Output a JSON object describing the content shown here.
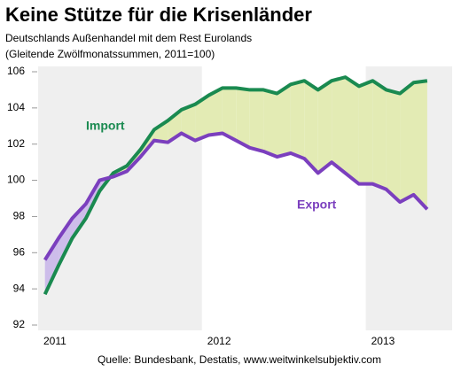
{
  "chart_data": {
    "type": "line",
    "title": "Keine Stütze für die Krisenländer",
    "subtitle": [
      "Deutschlands Außenhandel mit dem Rest Eurolands",
      "(Gleitende Zwölfmonatssummen, 2011=100)"
    ],
    "source": "Quelle: Bundesbank, Destatis, www.weitwinkelsubjektiv.com",
    "categories": [
      "2011",
      null,
      null,
      null,
      null,
      null,
      null,
      null,
      null,
      null,
      null,
      null,
      "2012",
      null,
      null,
      null,
      null,
      null,
      null,
      null,
      null,
      null,
      null,
      null,
      "2013",
      null,
      null,
      null,
      null
    ],
    "series": [
      {
        "name": "Import",
        "color": "#1a8a50",
        "values": [
          93.7,
          95.3,
          96.8,
          97.9,
          99.4,
          100.4,
          100.8,
          101.7,
          102.8,
          103.3,
          103.9,
          104.2,
          104.7,
          105.1,
          105.1,
          105.0,
          105.0,
          104.8,
          105.3,
          105.5,
          105.0,
          105.5,
          105.7,
          105.2,
          105.5,
          105.0,
          104.8,
          105.4,
          105.5
        ]
      },
      {
        "name": "Export",
        "color": "#7b3fbe",
        "values": [
          95.6,
          96.8,
          97.9,
          98.7,
          100.0,
          100.2,
          100.5,
          101.3,
          102.2,
          102.1,
          102.6,
          102.2,
          102.5,
          102.6,
          102.2,
          101.8,
          101.6,
          101.3,
          101.5,
          101.2,
          100.4,
          101.0,
          100.4,
          99.8,
          99.8,
          99.5,
          98.8,
          99.2,
          98.4
        ]
      }
    ],
    "fill_colors": [
      "#e3ebb4",
      "#cdbdea"
    ],
    "ylim": [
      92,
      106
    ],
    "yticks": [
      92,
      94,
      96,
      98,
      100,
      102,
      104,
      106
    ],
    "grid": false
  }
}
